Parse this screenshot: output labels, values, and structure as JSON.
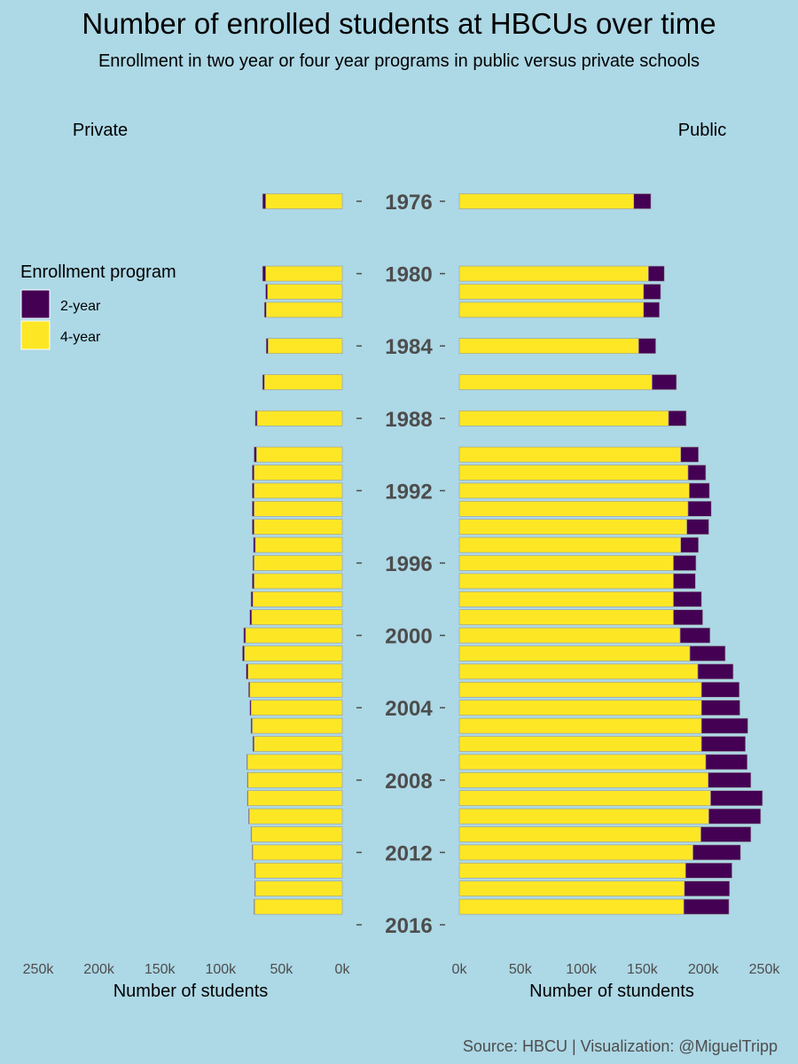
{
  "title": "Number of enrolled students at HBCUs over time",
  "subtitle": "Enrollment in two year or four year programs in public versus private schools",
  "caption": "Source: HBCU | Visualization: @MiguelTripp",
  "colors": {
    "background": "#add8e6",
    "two_year": "#440154",
    "four_year": "#fde725"
  },
  "chart_data": {
    "type": "bar",
    "orientation": "horizontal",
    "stacked": true,
    "y_axis_labels": [
      "1976",
      "1980",
      "1984",
      "1988",
      "1992",
      "1996",
      "2000",
      "2004",
      "2008",
      "2012",
      "2016"
    ],
    "legend": {
      "title": "Enrollment program",
      "entries": [
        "2-year",
        "4-year"
      ],
      "position": "left"
    },
    "xlim": [
      0,
      250000
    ],
    "x_ticks": [
      "250k",
      "200k",
      "150k",
      "100k",
      "50k",
      "0k"
    ],
    "x_ticks_right": [
      "0k",
      "50k",
      "100k",
      "150k",
      "200k",
      "250k"
    ],
    "panels": [
      {
        "label": "Private",
        "xlabel": "Number of students",
        "direction": "reversed",
        "years": [
          1976,
          1980,
          1981,
          1982,
          1984,
          1986,
          1988,
          1990,
          1991,
          1992,
          1993,
          1994,
          1995,
          1996,
          1997,
          1998,
          1999,
          2000,
          2001,
          2002,
          2003,
          2004,
          2005,
          2006,
          2007,
          2008,
          2009,
          2010,
          2011,
          2012,
          2013,
          2014,
          2015
        ],
        "series": [
          {
            "name": "2-year",
            "values": [
              2500,
              2500,
              1500,
              1500,
              1500,
              1500,
              1500,
              2000,
              1500,
              1500,
              1500,
              1500,
              1500,
              1000,
              1500,
              1500,
              1500,
              1500,
              1500,
              1500,
              1000,
              1000,
              1000,
              1000,
              500,
              500,
              500,
              500,
              500,
              500,
              500,
              500,
              500
            ]
          },
          {
            "name": "4-year",
            "values": [
              63000,
              63000,
              61500,
              62500,
              61000,
              64000,
              70000,
              70500,
              72500,
              72500,
              72500,
              72500,
              71500,
              72500,
              72500,
              73500,
              74500,
              79500,
              80500,
              77500,
              76000,
              75000,
              74000,
              72500,
              78000,
              77500,
              77500,
              76500,
              74500,
              73500,
              71500,
              71500,
              72000
            ]
          }
        ]
      },
      {
        "label": "Public",
        "xlabel": "Number of stundents",
        "direction": "normal",
        "years": [
          1976,
          1980,
          1981,
          1982,
          1984,
          1986,
          1988,
          1990,
          1991,
          1992,
          1993,
          1994,
          1995,
          1996,
          1997,
          1998,
          1999,
          2000,
          2001,
          2002,
          2003,
          2004,
          2005,
          2006,
          2007,
          2008,
          2009,
          2010,
          2011,
          2012,
          2013,
          2014,
          2015
        ],
        "series": [
          {
            "name": "2-year",
            "values": [
              14000,
              13000,
              14000,
              13000,
              14000,
              20000,
              14500,
              14500,
              14500,
              16500,
              19000,
              18000,
              14500,
              18500,
              18000,
              23000,
              24000,
              24500,
              29000,
              29000,
              31000,
              31500,
              38000,
              36000,
              34000,
              35000,
              42500,
              42500,
              41000,
              39000,
              38000,
              37000,
              37000
            ]
          },
          {
            "name": "4-year",
            "values": [
              143000,
              155000,
              151000,
              151000,
              147000,
              158000,
              171500,
              181500,
              187500,
              188500,
              187500,
              186500,
              181500,
              175500,
              175500,
              175500,
              175500,
              181000,
              189000,
              195500,
              198500,
              198500,
              198500,
              198500,
              202000,
              204000,
              206000,
              204500,
              198000,
              191500,
              185500,
              184500,
              184000
            ]
          }
        ]
      }
    ],
    "grid": false
  }
}
